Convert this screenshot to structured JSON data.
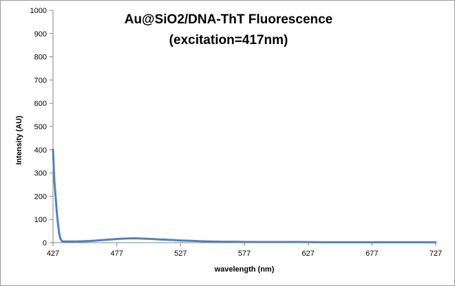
{
  "chart_data": {
    "type": "line",
    "title": [
      "Au@SiO2/DNA-ThT Fluorescence",
      "(excitation=417nm)"
    ],
    "xlabel": "wavelength (nm)",
    "ylabel": "Intensity (AU)",
    "xlim": [
      427,
      727
    ],
    "ylim": [
      0,
      1000
    ],
    "xticks": [
      427,
      477,
      527,
      577,
      627,
      677,
      727
    ],
    "yticks": [
      0,
      100,
      200,
      300,
      400,
      500,
      600,
      700,
      800,
      900,
      1000
    ],
    "grid": false,
    "legend": "none",
    "series_color": "#4f81bd",
    "series": [
      {
        "x": [
          427,
          428,
          429,
          430,
          431,
          432,
          433,
          434,
          435,
          437,
          440,
          445,
          450,
          455,
          460,
          465,
          470,
          475,
          480,
          485,
          490,
          495,
          500,
          505,
          510,
          515,
          520,
          525,
          530,
          535,
          540,
          545,
          550,
          560,
          570,
          580,
          590,
          600,
          620,
          640,
          660,
          680,
          700,
          727
        ],
        "values": [
          400,
          270,
          200,
          130,
          75,
          35,
          15,
          7,
          5,
          5,
          5,
          5,
          6,
          7,
          9,
          11,
          13,
          15,
          17,
          18,
          19,
          18,
          17,
          16,
          14,
          13,
          12,
          10,
          9,
          8,
          7,
          6,
          5,
          4,
          4,
          3,
          3,
          3,
          3,
          2,
          2,
          2,
          2,
          2
        ]
      }
    ]
  }
}
